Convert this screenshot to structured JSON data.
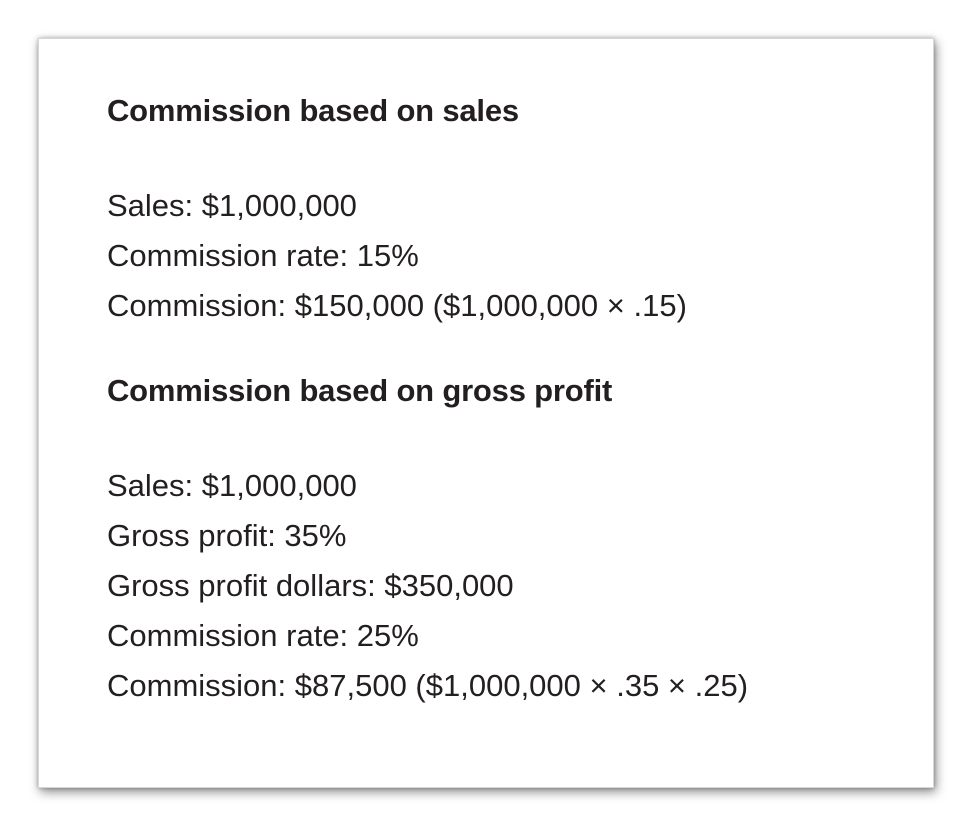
{
  "sections": [
    {
      "heading": "Commission based on sales",
      "lines": [
        "Sales: $1,000,000",
        "Commission rate: 15%",
        "Commission: $150,000 ($1,000,000 × .15)"
      ]
    },
    {
      "heading": "Commission based on gross profit",
      "lines": [
        "Sales: $1,000,000",
        "Gross profit: 35%",
        "Gross profit dollars: $350,000",
        "Commission rate: 25%",
        "Commission: $87,500 ($1,000,000 × .35 × .25)"
      ]
    }
  ]
}
